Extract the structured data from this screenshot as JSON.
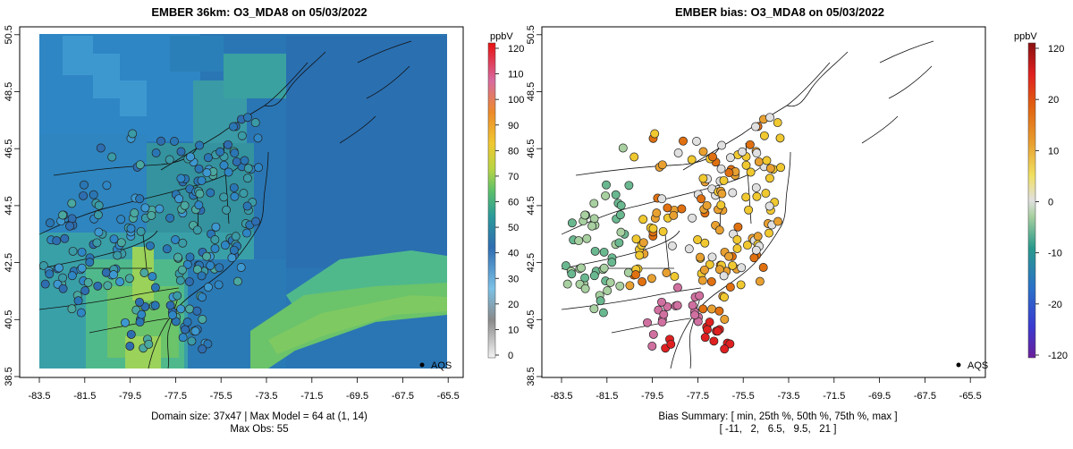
{
  "left_panel": {
    "title": "EMBER 36km: O3_MDA8 on 05/03/2022",
    "caption_line1": "Domain size: 37x47 | Max Model = 64 at (1, 14)",
    "caption_line2": "Max Obs: 55",
    "colorbar": {
      "unit": "ppbV",
      "ticks": [
        "120",
        "110",
        "100",
        "90",
        "80",
        "70",
        "60",
        "50",
        "40",
        "30",
        "20",
        "10",
        "0"
      ]
    },
    "legend_label": "AQS"
  },
  "right_panel": {
    "title": "EMBER bias: O3_MDA8 on 05/03/2022",
    "caption_line1": "Bias Summary: [ min, 25th %, 50th %, 75th %, max ]",
    "caption_line2": "[ -11,   2,   6.5,   9.5,   21 ]",
    "colorbar": {
      "unit": "ppbV",
      "ticks": [
        "120",
        "20",
        "10",
        "0",
        "-10",
        "-20",
        "-120"
      ]
    },
    "legend_label": "AQS"
  },
  "axes": {
    "x_ticks": [
      "-83.5",
      "-81.5",
      "-79.5",
      "-77.5",
      "-75.5",
      "-73.5",
      "-71.5",
      "-69.5",
      "-67.5",
      "-65.5"
    ],
    "y_ticks": [
      "38.5",
      "40.5",
      "42.5",
      "44.5",
      "46.5",
      "48.5",
      "50.5"
    ]
  },
  "colors": {
    "model_field": [
      "#2a6fb0",
      "#2f89c8",
      "#3aa0a8",
      "#4fb98c",
      "#6bc36a",
      "#9ad25a"
    ],
    "bias_scale": [
      "#7b2a9a",
      "#2140c8",
      "#2c9a8a",
      "#d8d8d8",
      "#f0d24a",
      "#e08a20",
      "#e03020",
      "#8a1010"
    ]
  }
}
